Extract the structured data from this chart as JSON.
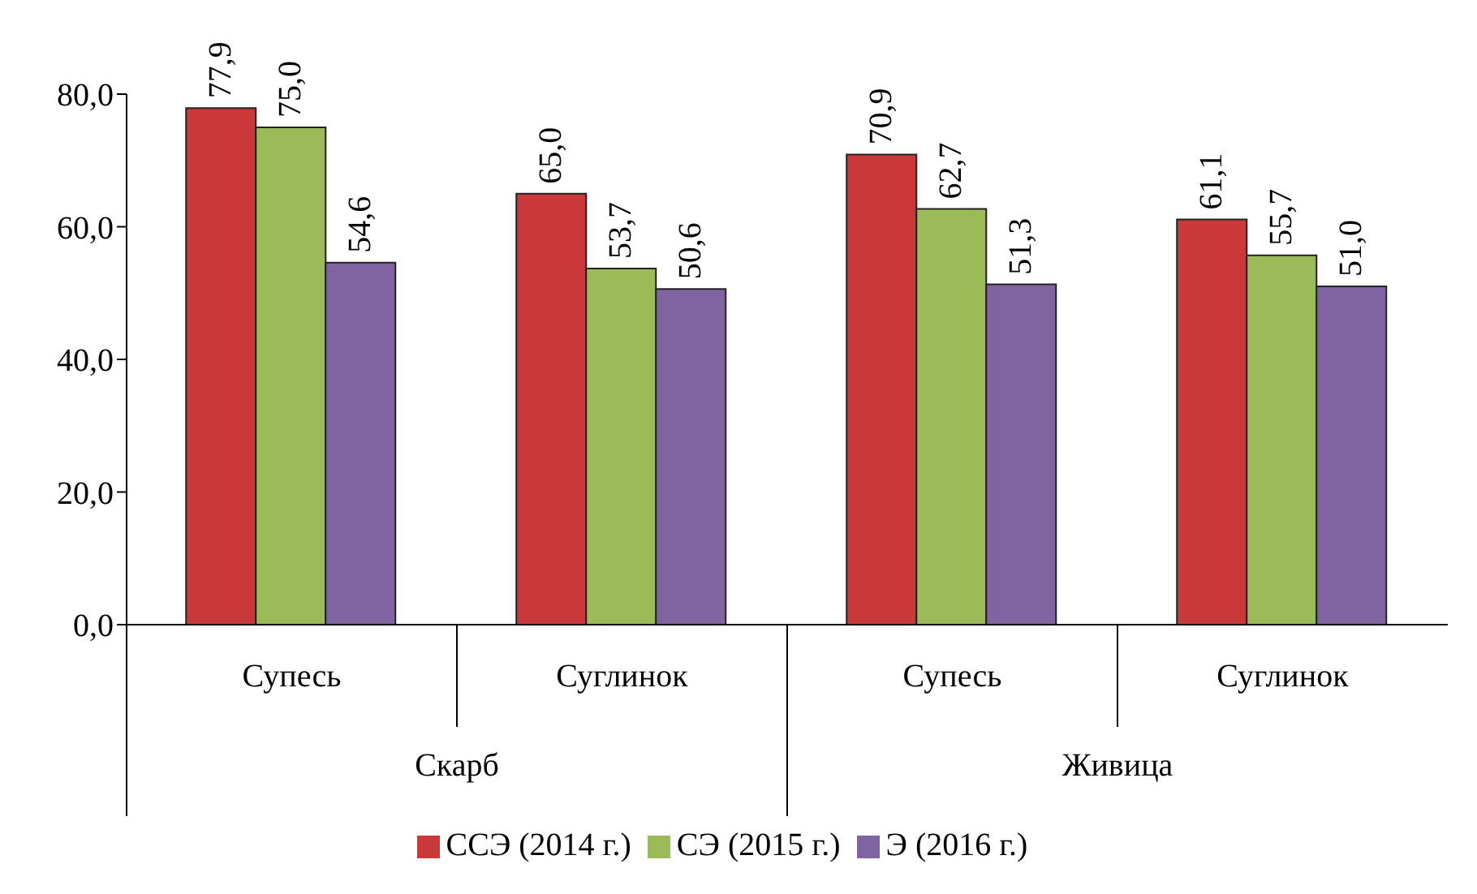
{
  "chart_data": {
    "type": "bar",
    "categories": [
      "Супесь",
      "Суглинок",
      "Супесь",
      "Суглинок"
    ],
    "annotations": [
      "Скарб",
      "Живица"
    ],
    "series": [
      {
        "name": "ССЭ (2014 г.)",
        "color": "#c9393a",
        "values": [
          77.9,
          65.0,
          70.9,
          61.1
        ],
        "value_labels": [
          "77,9",
          "65,0",
          "70,9",
          "61,1"
        ]
      },
      {
        "name": "СЭ (2015 г.)",
        "color": "#9bbb59",
        "values": [
          75.0,
          53.7,
          62.7,
          55.7
        ],
        "value_labels": [
          "75,0",
          "53,7",
          "62,7",
          "55,7"
        ]
      },
      {
        "name": "Э (2016 г.)",
        "color": "#8064a2",
        "values": [
          54.6,
          50.6,
          51.3,
          51.0
        ],
        "value_labels": [
          "54,6",
          "50,6",
          "51,3",
          "51,0"
        ]
      }
    ],
    "ylim": [
      0,
      80
    ],
    "yticks": [
      {
        "value": 0,
        "label": "0,0"
      },
      {
        "value": 20,
        "label": "20,0"
      },
      {
        "value": 40,
        "label": "40,0"
      },
      {
        "value": 60,
        "label": "60,0"
      },
      {
        "value": 80,
        "label": "80,0"
      }
    ],
    "grid": false,
    "legend": "bottom"
  }
}
